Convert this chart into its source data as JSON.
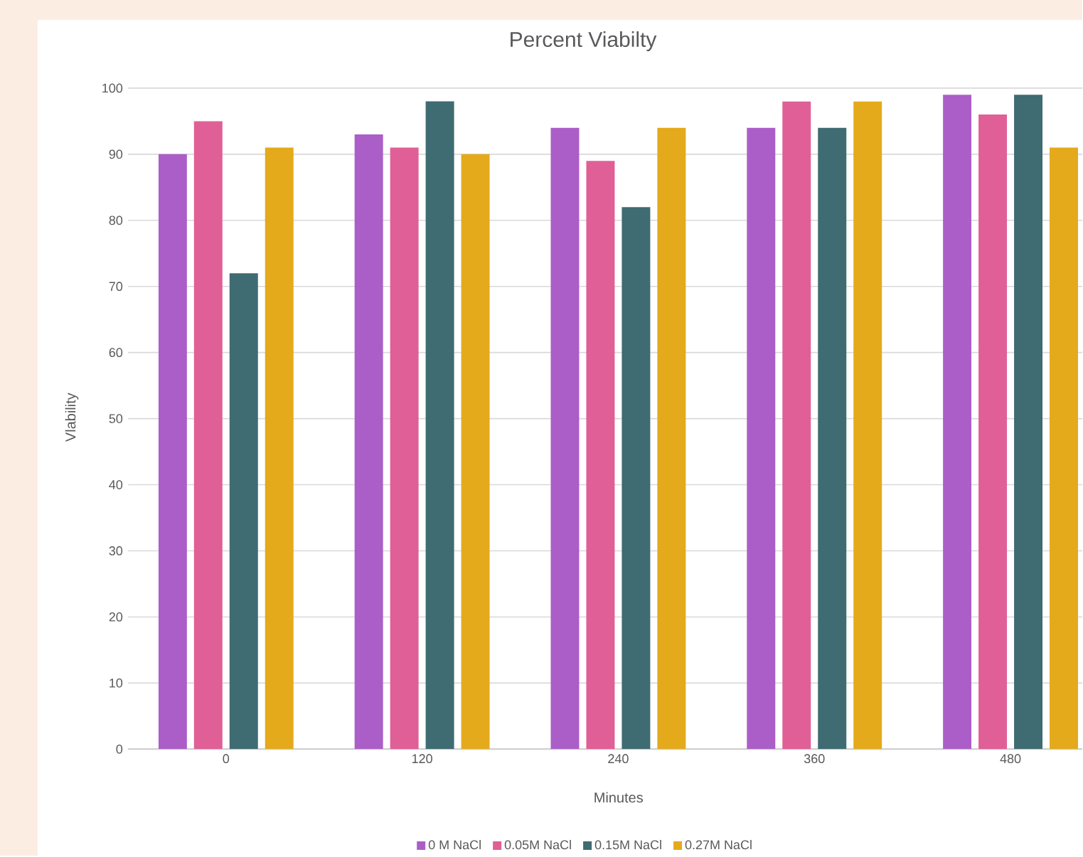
{
  "chart_data": {
    "type": "bar",
    "title": "Percent Viabilty",
    "xlabel": "Minutes",
    "ylabel": "Vlability",
    "categories": [
      "0",
      "120",
      "240",
      "360",
      "480"
    ],
    "series": [
      {
        "name": "0 M NaCl",
        "color": "#ab5ec7",
        "values": [
          90,
          93,
          94,
          94,
          99
        ]
      },
      {
        "name": "0.05M NaCl",
        "color": "#e05f97",
        "values": [
          95,
          91,
          89,
          98,
          96
        ]
      },
      {
        "name": "0.15M NaCl",
        "color": "#3f6b72",
        "values": [
          72,
          98,
          82,
          94,
          99
        ]
      },
      {
        "name": "0.27M NaCl",
        "color": "#e4aa1c",
        "values": [
          91,
          90,
          94,
          98,
          91
        ]
      }
    ],
    "ylim": [
      0,
      100
    ],
    "yticks": [
      0,
      10,
      20,
      30,
      40,
      50,
      60,
      70,
      80,
      90,
      100
    ],
    "grid": "y",
    "legend": "bottom"
  }
}
